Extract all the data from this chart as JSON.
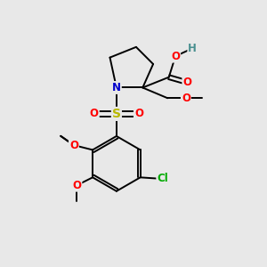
{
  "background_color": "#e8e8e8",
  "bond_color": "#000000",
  "atom_colors": {
    "O": "#ff0000",
    "N": "#0000cc",
    "S": "#b8b800",
    "Cl": "#00aa00",
    "H": "#4a9090",
    "C": "#000000"
  },
  "figsize": [
    3.0,
    3.0
  ],
  "dpi": 100
}
